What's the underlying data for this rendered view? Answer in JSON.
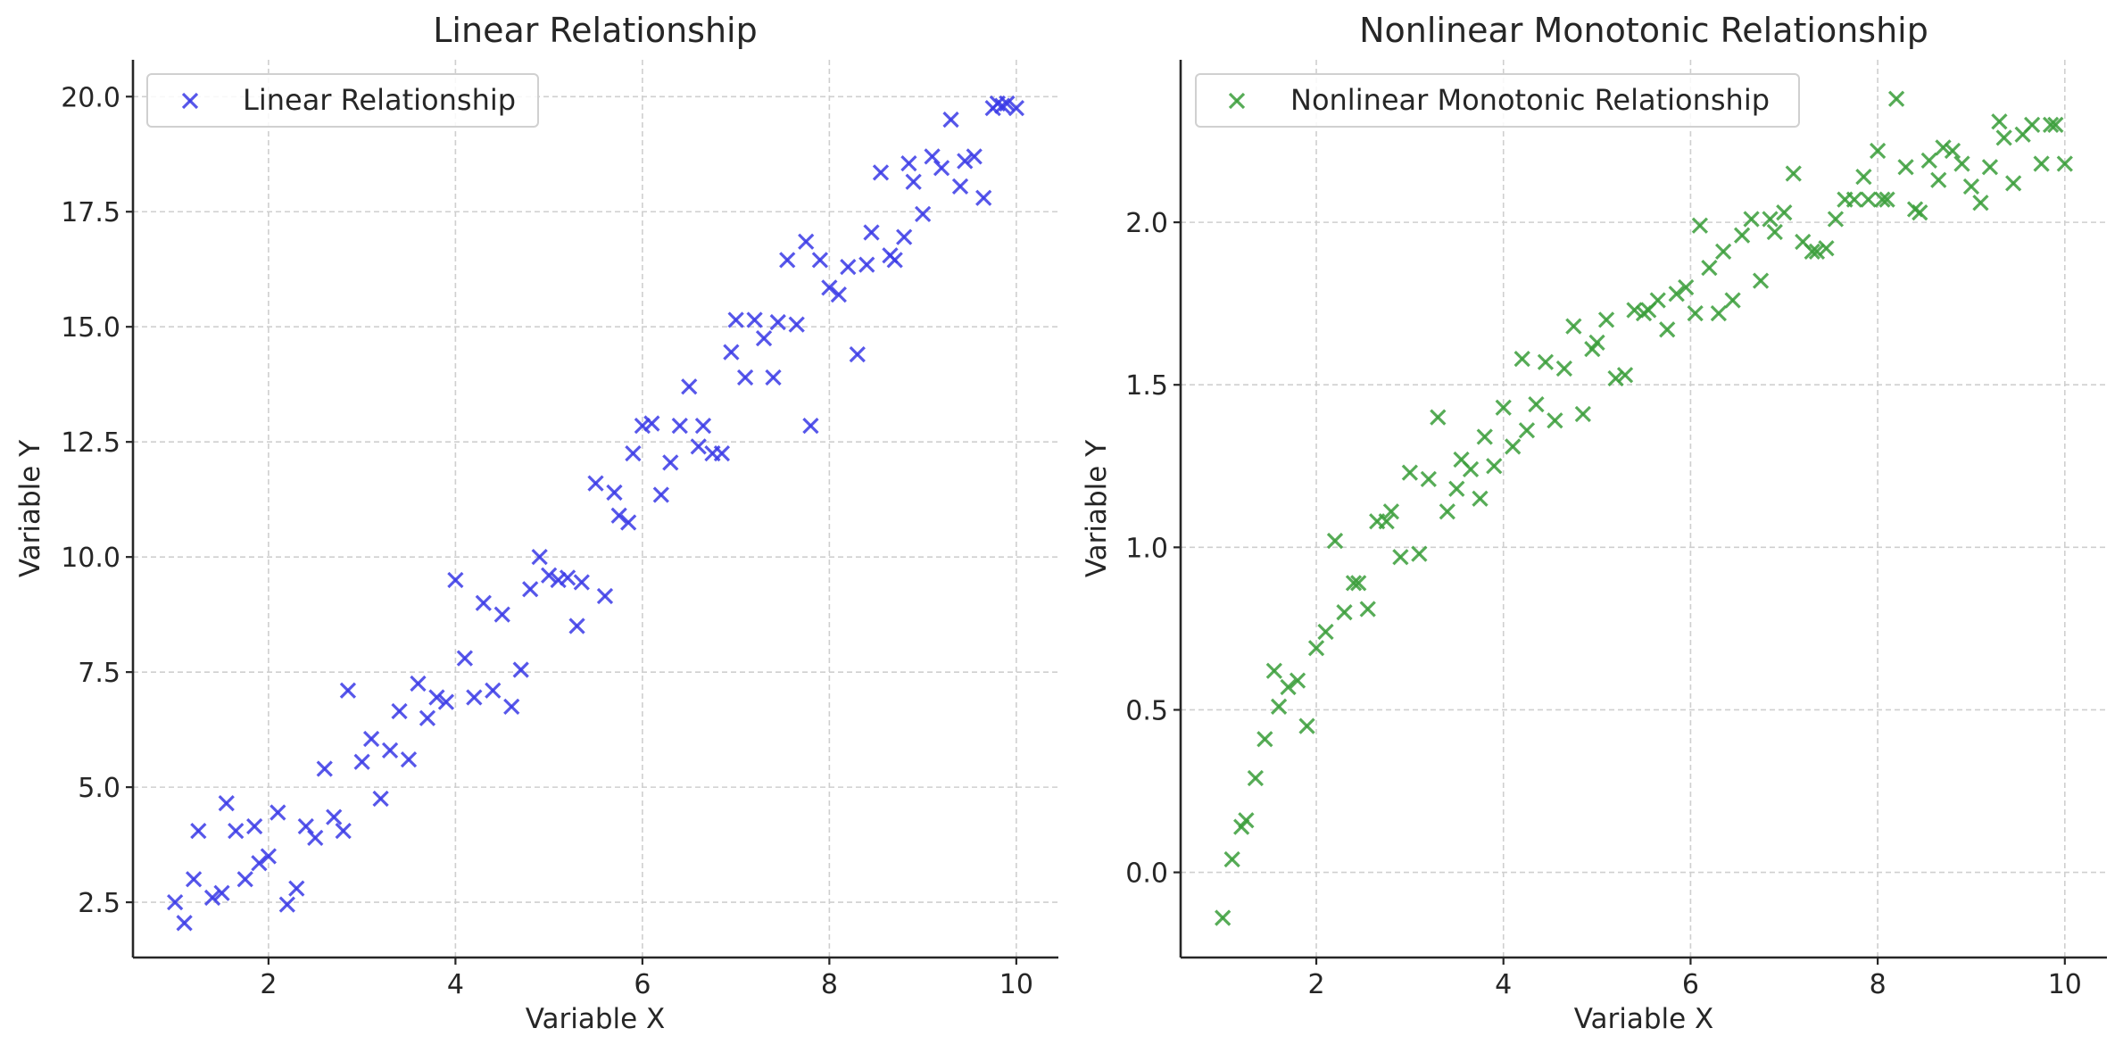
{
  "chart_data": [
    {
      "type": "scatter",
      "title": "Linear Relationship",
      "xlabel": "Variable X",
      "ylabel": "Variable Y",
      "xlim": [
        0.55,
        10.45
      ],
      "ylim": [
        1.3,
        20.8
      ],
      "xticks": [
        2,
        4,
        6,
        8,
        10
      ],
      "xtick_labels": [
        "2",
        "4",
        "6",
        "8",
        "10"
      ],
      "yticks": [
        2.5,
        5.0,
        7.5,
        10.0,
        12.5,
        15.0,
        17.5,
        20.0
      ],
      "ytick_labels": [
        "2.5",
        "5.0",
        "7.5",
        "10.0",
        "12.5",
        "15.0",
        "17.5",
        "20.0"
      ],
      "grid": true,
      "legend_position": "top-left",
      "marker": "x",
      "series": [
        {
          "name": "Linear Relationship",
          "color": "#3a3ae6",
          "x": [
            1.0,
            1.1,
            1.2,
            1.25,
            1.4,
            1.5,
            1.55,
            1.65,
            1.75,
            1.85,
            1.9,
            2.0,
            2.1,
            2.2,
            2.3,
            2.4,
            2.5,
            2.6,
            2.7,
            2.8,
            2.85,
            3.0,
            3.1,
            3.2,
            3.3,
            3.4,
            3.5,
            3.6,
            3.7,
            3.8,
            3.9,
            4.0,
            4.1,
            4.2,
            4.3,
            4.4,
            4.5,
            4.6,
            4.7,
            4.8,
            4.9,
            5.0,
            5.1,
            5.2,
            5.3,
            5.35,
            5.5,
            5.6,
            5.7,
            5.75,
            5.85,
            5.9,
            6.0,
            6.1,
            6.2,
            6.3,
            6.4,
            6.5,
            6.6,
            6.65,
            6.75,
            6.85,
            6.95,
            7.0,
            7.1,
            7.2,
            7.3,
            7.4,
            7.45,
            7.55,
            7.65,
            7.75,
            7.8,
            7.9,
            8.0,
            8.1,
            8.2,
            8.3,
            8.4,
            8.45,
            8.55,
            8.65,
            8.7,
            8.8,
            8.85,
            8.9,
            9.0,
            9.1,
            9.2,
            9.3,
            9.4,
            9.45,
            9.55,
            9.65,
            9.75,
            9.8,
            9.85,
            9.9,
            10.0
          ],
          "y": [
            2.5,
            2.05,
            3.0,
            4.05,
            2.6,
            2.7,
            4.65,
            4.05,
            3.0,
            4.15,
            3.35,
            3.5,
            4.45,
            2.45,
            2.8,
            4.15,
            3.9,
            5.4,
            4.35,
            4.05,
            7.1,
            5.55,
            6.05,
            4.75,
            5.8,
            6.65,
            5.6,
            7.25,
            6.5,
            6.95,
            6.85,
            9.5,
            7.8,
            6.95,
            9.0,
            7.1,
            8.75,
            6.75,
            7.55,
            9.3,
            10.0,
            9.6,
            9.5,
            9.55,
            8.5,
            9.45,
            11.6,
            9.15,
            11.4,
            10.9,
            10.75,
            12.25,
            12.85,
            12.9,
            11.35,
            12.05,
            12.85,
            13.7,
            12.4,
            12.85,
            12.25,
            12.25,
            14.45,
            15.15,
            13.9,
            15.15,
            14.75,
            13.9,
            15.1,
            16.45,
            15.05,
            16.85,
            12.85,
            16.45,
            15.85,
            15.7,
            16.3,
            14.4,
            16.35,
            17.05,
            18.35,
            16.55,
            16.45,
            16.95,
            18.55,
            18.15,
            17.45,
            18.7,
            18.45,
            19.5,
            18.05,
            18.6,
            18.7,
            17.8,
            19.75,
            19.85,
            19.8,
            19.85,
            19.75
          ]
        }
      ]
    },
    {
      "type": "scatter",
      "title": "Nonlinear Monotonic Relationship",
      "xlabel": "Variable X",
      "ylabel": "Variable Y",
      "xlim": [
        0.55,
        10.45
      ],
      "ylim": [
        -0.262,
        2.5
      ],
      "xticks": [
        2,
        4,
        6,
        8,
        10
      ],
      "xtick_labels": [
        "2",
        "4",
        "6",
        "8",
        "10"
      ],
      "yticks": [
        0.0,
        0.5,
        1.0,
        1.5,
        2.0
      ],
      "ytick_labels": [
        "0.0",
        "0.5",
        "1.0",
        "1.5",
        "2.0"
      ],
      "grid": true,
      "legend_position": "top-left",
      "marker": "x",
      "series": [
        {
          "name": "Nonlinear Monotonic Relationship",
          "color": "#3a9e3a",
          "x": [
            1.0,
            1.1,
            1.2,
            1.25,
            1.35,
            1.45,
            1.55,
            1.6,
            1.7,
            1.8,
            1.9,
            2.0,
            2.1,
            2.2,
            2.3,
            2.4,
            2.45,
            2.55,
            2.65,
            2.75,
            2.8,
            2.9,
            3.0,
            3.1,
            3.2,
            3.3,
            3.4,
            3.5,
            3.55,
            3.65,
            3.75,
            3.8,
            3.9,
            4.0,
            4.1,
            4.2,
            4.25,
            4.35,
            4.45,
            4.55,
            4.65,
            4.75,
            4.85,
            4.95,
            5.0,
            5.1,
            5.2,
            5.3,
            5.4,
            5.5,
            5.55,
            5.65,
            5.75,
            5.85,
            5.95,
            6.05,
            6.1,
            6.2,
            6.3,
            6.35,
            6.45,
            6.55,
            6.65,
            6.75,
            6.85,
            6.9,
            7.0,
            7.1,
            7.2,
            7.3,
            7.35,
            7.45,
            7.55,
            7.65,
            7.75,
            7.85,
            7.9,
            8.0,
            8.05,
            8.1,
            8.2,
            8.3,
            8.4,
            8.45,
            8.55,
            8.65,
            8.7,
            8.8,
            8.9,
            9.0,
            9.1,
            9.2,
            9.3,
            9.35,
            9.45,
            9.55,
            9.65,
            9.75,
            9.85,
            9.9,
            10.0
          ],
          "y": [
            -0.14,
            0.04,
            0.14,
            0.16,
            0.29,
            0.41,
            0.62,
            0.51,
            0.57,
            0.59,
            0.45,
            0.69,
            0.74,
            1.02,
            0.8,
            0.89,
            0.89,
            0.81,
            1.08,
            1.08,
            1.11,
            0.97,
            1.23,
            0.98,
            1.21,
            1.4,
            1.11,
            1.18,
            1.27,
            1.24,
            1.15,
            1.34,
            1.25,
            1.43,
            1.31,
            1.58,
            1.36,
            1.44,
            1.57,
            1.39,
            1.55,
            1.68,
            1.41,
            1.61,
            1.63,
            1.7,
            1.52,
            1.53,
            1.73,
            1.72,
            1.73,
            1.76,
            1.67,
            1.78,
            1.8,
            1.72,
            1.99,
            1.86,
            1.72,
            1.91,
            1.76,
            1.96,
            2.01,
            1.82,
            2.01,
            1.97,
            2.03,
            2.15,
            1.94,
            1.91,
            1.91,
            1.92,
            2.01,
            2.07,
            2.07,
            2.14,
            2.07,
            2.22,
            2.07,
            2.07,
            2.38,
            2.17,
            2.04,
            2.03,
            2.19,
            2.13,
            2.23,
            2.22,
            2.18,
            2.11,
            2.06,
            2.17,
            2.31,
            2.26,
            2.12,
            2.27,
            2.3,
            2.18,
            2.3,
            2.3,
            2.18
          ]
        }
      ]
    }
  ]
}
